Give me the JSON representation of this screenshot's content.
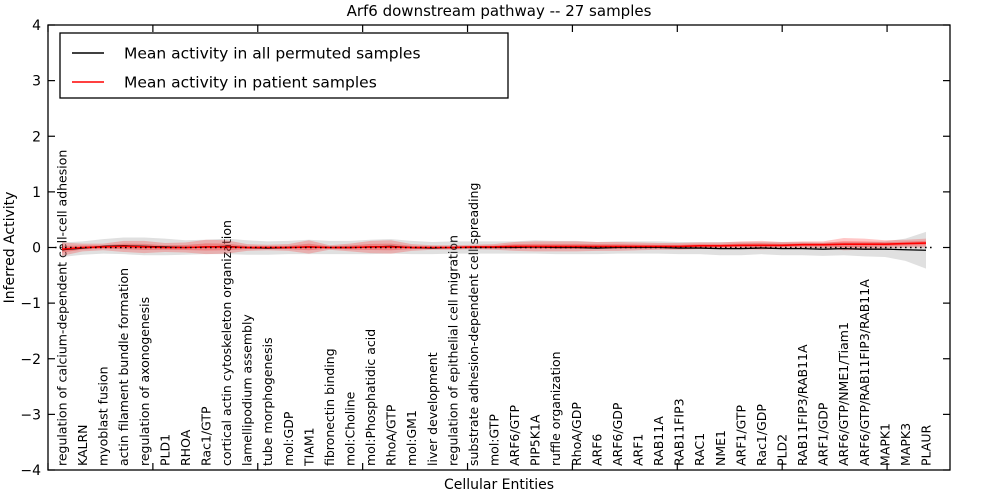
{
  "figure": {
    "title": "Arf6 downstream pathway -- 27 samples",
    "xlabel": "Cellular Entities",
    "ylabel": "Inferred Activity"
  },
  "legend": {
    "position": "upper left",
    "entries": [
      {
        "label": "Mean activity in all permuted samples",
        "color": "#000000"
      },
      {
        "label": "Mean activity in patient samples",
        "color": "#ff0000"
      }
    ]
  },
  "chart_data": {
    "type": "line",
    "title": "Arf6 downstream pathway -- 27 samples",
    "xlabel": "Cellular Entities",
    "ylabel": "Inferred Activity",
    "ylim": [
      -4,
      4
    ],
    "yticks": [
      4,
      3,
      2,
      1,
      0,
      -1,
      -2,
      -3,
      -4
    ],
    "grid": false,
    "legend_position": "upper left",
    "zero_line": {
      "y": 0,
      "style": "dotted",
      "color": "#000000"
    },
    "categories": [
      "regulation of calcium-dependent cell-cell adhesion",
      "KALRN",
      "myoblast fusion",
      "actin filament bundle formation",
      "regulation of axonogenesis",
      "PLD1",
      "RHOA",
      "Rac1/GTP",
      "cortical actin cytoskeleton organization",
      "lamellipodium assembly",
      "tube morphogenesis",
      "mol:GDP",
      "TIAM1",
      "fibronectin binding",
      "mol:Choline",
      "mol:Phosphatidic acid",
      "RhoA/GTP",
      "mol:GM1",
      "liver development",
      "regulation of epithelial cell migration",
      "substrate adhesion-dependent cell spreading",
      "mol:GTP",
      "ARF6/GTP",
      "PIP5K1A",
      "ruffle organization",
      "RhoA/GDP",
      "ARF6",
      "ARF6/GDP",
      "ARF1",
      "RAB11A",
      "RAB11FIP3",
      "RAC1",
      "NME1",
      "ARF1/GTP",
      "Rac1/GDP",
      "PLD2",
      "RAB11FIP3/RAB11A",
      "ARF1/GDP",
      "ARF6/GTP/NME1/Tiam1",
      "ARF6/GTP/RAB11FIP3/RAB11A",
      "MAPK1",
      "MAPK3",
      "PLAUR"
    ],
    "series": [
      {
        "name": "Mean activity in all permuted samples",
        "color": "#000000",
        "band_color": "#999999",
        "values": [
          -0.04,
          -0.01,
          0.02,
          0.03,
          0.02,
          0.01,
          0.0,
          0.01,
          0.02,
          0.0,
          -0.01,
          0.0,
          0.01,
          0.0,
          0.0,
          0.01,
          0.02,
          0.0,
          -0.01,
          0.0,
          0.0,
          0.0,
          0.0,
          0.01,
          0.0,
          0.0,
          -0.01,
          0.0,
          0.0,
          0.0,
          -0.01,
          -0.01,
          -0.02,
          -0.02,
          -0.01,
          -0.02,
          -0.02,
          -0.03,
          -0.02,
          -0.03,
          -0.03,
          -0.04,
          -0.05
        ],
        "band_halfwidth": [
          0.13,
          0.12,
          0.13,
          0.15,
          0.16,
          0.15,
          0.13,
          0.13,
          0.14,
          0.13,
          0.12,
          0.12,
          0.13,
          0.12,
          0.12,
          0.13,
          0.13,
          0.12,
          0.11,
          0.11,
          0.11,
          0.11,
          0.11,
          0.12,
          0.12,
          0.12,
          0.11,
          0.11,
          0.11,
          0.11,
          0.11,
          0.11,
          0.12,
          0.12,
          0.11,
          0.12,
          0.12,
          0.12,
          0.12,
          0.13,
          0.14,
          0.2,
          0.33
        ]
      },
      {
        "name": "Mean activity in patient samples",
        "color": "#ff0000",
        "band_color": "#ff0000",
        "values": [
          -0.03,
          0.0,
          0.01,
          0.02,
          0.01,
          0.0,
          0.0,
          0.01,
          0.01,
          0.0,
          0.0,
          0.0,
          0.01,
          0.0,
          0.0,
          0.01,
          0.01,
          0.0,
          0.0,
          0.0,
          0.01,
          0.01,
          0.02,
          0.02,
          0.02,
          0.02,
          0.02,
          0.02,
          0.02,
          0.02,
          0.02,
          0.03,
          0.03,
          0.04,
          0.04,
          0.04,
          0.05,
          0.05,
          0.06,
          0.06,
          0.06,
          0.07,
          0.08
        ],
        "band_halfwidth": [
          0.12,
          0.07,
          0.06,
          0.1,
          0.11,
          0.08,
          0.09,
          0.13,
          0.12,
          0.06,
          0.05,
          0.06,
          0.12,
          0.04,
          0.07,
          0.11,
          0.12,
          0.06,
          0.04,
          0.04,
          0.04,
          0.05,
          0.08,
          0.09,
          0.09,
          0.09,
          0.08,
          0.08,
          0.07,
          0.06,
          0.06,
          0.06,
          0.06,
          0.07,
          0.08,
          0.06,
          0.06,
          0.06,
          0.11,
          0.1,
          0.07,
          0.07,
          0.08
        ]
      }
    ]
  }
}
